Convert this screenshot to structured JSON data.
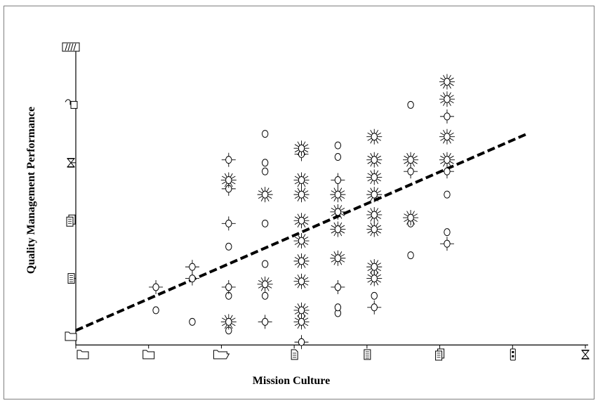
{
  "chart_data": {
    "type": "scatter",
    "xlabel": "Mission Culture",
    "ylabel": "Quality Management Performance",
    "x_ticks": [
      1,
      2,
      3,
      4,
      5,
      6,
      7,
      8
    ],
    "y_ticks": [
      1,
      2,
      3,
      4,
      5,
      6
    ],
    "x_tick_icons": [
      "folder-icon",
      "open-folder-icon",
      "document-icon",
      "document-lines-icon",
      "documents-stack-icon",
      "phone-icon",
      "hourglass-icon"
    ],
    "y_tick_icons": [
      "folder-icon",
      "document-lines-icon",
      "documents-stack-icon",
      "hourglass-icon",
      "phone-hand-icon",
      "folders-group-icon"
    ],
    "xlim": [
      1,
      7.2
    ],
    "ylim": [
      0.85,
      6
    ],
    "grid": false,
    "legend": "none",
    "markers": {
      "circle": "o",
      "cross": "+",
      "star": "*"
    },
    "points": [
      {
        "x": 2.1,
        "y": 1.45,
        "m": "circle"
      },
      {
        "x": 2.1,
        "y": 1.85,
        "m": "cross"
      },
      {
        "x": 2.6,
        "y": 1.25,
        "m": "circle"
      },
      {
        "x": 2.6,
        "y": 2.0,
        "m": "cross"
      },
      {
        "x": 2.6,
        "y": 2.2,
        "m": "cross"
      },
      {
        "x": 3.1,
        "y": 1.1,
        "m": "circle"
      },
      {
        "x": 3.1,
        "y": 1.25,
        "m": "star"
      },
      {
        "x": 3.1,
        "y": 1.7,
        "m": "circle"
      },
      {
        "x": 3.1,
        "y": 1.85,
        "m": "cross"
      },
      {
        "x": 3.1,
        "y": 2.55,
        "m": "circle"
      },
      {
        "x": 3.1,
        "y": 2.95,
        "m": "cross"
      },
      {
        "x": 3.1,
        "y": 3.55,
        "m": "cross"
      },
      {
        "x": 3.1,
        "y": 3.7,
        "m": "star"
      },
      {
        "x": 3.1,
        "y": 4.05,
        "m": "cross"
      },
      {
        "x": 3.6,
        "y": 1.25,
        "m": "cross"
      },
      {
        "x": 3.6,
        "y": 1.7,
        "m": "circle"
      },
      {
        "x": 3.6,
        "y": 1.9,
        "m": "star"
      },
      {
        "x": 3.6,
        "y": 2.25,
        "m": "circle"
      },
      {
        "x": 3.6,
        "y": 2.95,
        "m": "circle"
      },
      {
        "x": 3.6,
        "y": 3.45,
        "m": "star"
      },
      {
        "x": 3.6,
        "y": 3.85,
        "m": "circle"
      },
      {
        "x": 3.6,
        "y": 4.0,
        "m": "circle"
      },
      {
        "x": 3.6,
        "y": 4.5,
        "m": "circle"
      },
      {
        "x": 4.1,
        "y": 0.9,
        "m": "cross"
      },
      {
        "x": 4.1,
        "y": 1.25,
        "m": "star"
      },
      {
        "x": 4.1,
        "y": 1.45,
        "m": "star"
      },
      {
        "x": 4.1,
        "y": 1.95,
        "m": "star"
      },
      {
        "x": 4.1,
        "y": 2.3,
        "m": "star"
      },
      {
        "x": 4.1,
        "y": 2.65,
        "m": "star"
      },
      {
        "x": 4.1,
        "y": 3.0,
        "m": "star"
      },
      {
        "x": 4.1,
        "y": 3.45,
        "m": "star"
      },
      {
        "x": 4.1,
        "y": 3.7,
        "m": "star"
      },
      {
        "x": 4.1,
        "y": 4.15,
        "m": "cross"
      },
      {
        "x": 4.1,
        "y": 4.25,
        "m": "star"
      },
      {
        "x": 4.6,
        "y": 1.4,
        "m": "circle"
      },
      {
        "x": 4.6,
        "y": 1.5,
        "m": "circle"
      },
      {
        "x": 4.6,
        "y": 1.85,
        "m": "cross"
      },
      {
        "x": 4.6,
        "y": 2.35,
        "m": "star"
      },
      {
        "x": 4.6,
        "y": 2.85,
        "m": "star"
      },
      {
        "x": 4.6,
        "y": 3.15,
        "m": "star"
      },
      {
        "x": 4.6,
        "y": 3.45,
        "m": "star"
      },
      {
        "x": 4.6,
        "y": 3.7,
        "m": "cross"
      },
      {
        "x": 4.6,
        "y": 4.1,
        "m": "circle"
      },
      {
        "x": 4.6,
        "y": 4.3,
        "m": "circle"
      },
      {
        "x": 5.1,
        "y": 1.5,
        "m": "cross"
      },
      {
        "x": 5.1,
        "y": 1.7,
        "m": "circle"
      },
      {
        "x": 5.1,
        "y": 2.0,
        "m": "star"
      },
      {
        "x": 5.1,
        "y": 2.2,
        "m": "star"
      },
      {
        "x": 5.1,
        "y": 2.85,
        "m": "star"
      },
      {
        "x": 5.1,
        "y": 3.1,
        "m": "star"
      },
      {
        "x": 5.1,
        "y": 3.45,
        "m": "star"
      },
      {
        "x": 5.1,
        "y": 3.75,
        "m": "star"
      },
      {
        "x": 5.1,
        "y": 4.05,
        "m": "star"
      },
      {
        "x": 5.1,
        "y": 4.45,
        "m": "star"
      },
      {
        "x": 5.6,
        "y": 2.4,
        "m": "circle"
      },
      {
        "x": 5.6,
        "y": 2.95,
        "m": "circle"
      },
      {
        "x": 5.6,
        "y": 3.05,
        "m": "star"
      },
      {
        "x": 5.6,
        "y": 3.85,
        "m": "cross"
      },
      {
        "x": 5.6,
        "y": 4.05,
        "m": "star"
      },
      {
        "x": 5.6,
        "y": 5.0,
        "m": "circle"
      },
      {
        "x": 6.1,
        "y": 2.6,
        "m": "cross"
      },
      {
        "x": 6.1,
        "y": 2.8,
        "m": "circle"
      },
      {
        "x": 6.1,
        "y": 3.45,
        "m": "circle"
      },
      {
        "x": 6.1,
        "y": 3.85,
        "m": "cross"
      },
      {
        "x": 6.1,
        "y": 4.05,
        "m": "star"
      },
      {
        "x": 6.1,
        "y": 4.45,
        "m": "star"
      },
      {
        "x": 6.1,
        "y": 4.8,
        "m": "cross"
      },
      {
        "x": 6.1,
        "y": 5.1,
        "m": "star"
      },
      {
        "x": 6.1,
        "y": 5.4,
        "m": "star"
      }
    ],
    "trendline": {
      "style": "dashed",
      "x": [
        1,
        7.2
      ],
      "y": [
        1.1,
        4.5
      ]
    }
  }
}
